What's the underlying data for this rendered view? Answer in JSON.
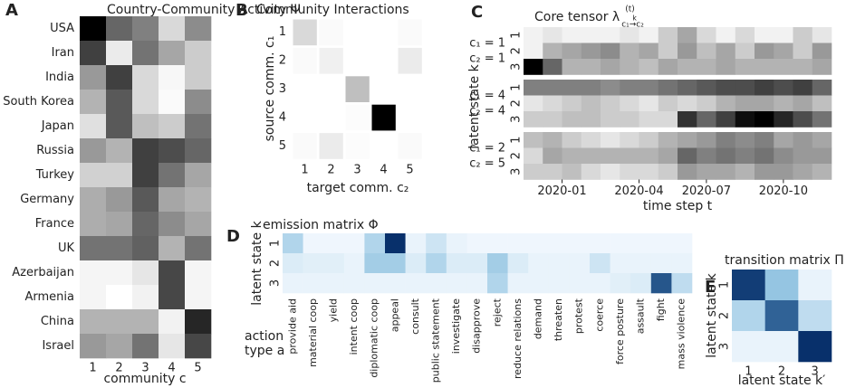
{
  "chart_data": [
    {
      "type": "heatmap",
      "panel": "A",
      "title": "Country-Community Activity Ψ",
      "xlabel": "community c",
      "colormap": "gray",
      "vlim": [
        0,
        1
      ],
      "rows": [
        "USA",
        "Iran",
        "India",
        "South Korea",
        "Japan",
        "Russia",
        "Turkey",
        "Germany",
        "France",
        "UK",
        "Azerbaijan",
        "Armenia",
        "China",
        "Israel"
      ],
      "columns": [
        1,
        2,
        3,
        4,
        5
      ],
      "values": [
        [
          1.0,
          0.6,
          0.5,
          0.15,
          0.45
        ],
        [
          0.75,
          0.08,
          0.55,
          0.35,
          0.2
        ],
        [
          0.4,
          0.75,
          0.15,
          0.03,
          0.2
        ],
        [
          0.3,
          0.65,
          0.15,
          0.02,
          0.45
        ],
        [
          0.12,
          0.65,
          0.25,
          0.2,
          0.55
        ],
        [
          0.4,
          0.3,
          0.75,
          0.7,
          0.6
        ],
        [
          0.18,
          0.18,
          0.75,
          0.55,
          0.35
        ],
        [
          0.32,
          0.4,
          0.65,
          0.35,
          0.3
        ],
        [
          0.32,
          0.35,
          0.6,
          0.45,
          0.35
        ],
        [
          0.55,
          0.55,
          0.62,
          0.3,
          0.55
        ],
        [
          0.04,
          0.04,
          0.1,
          0.72,
          0.04
        ],
        [
          0.04,
          0.0,
          0.05,
          0.72,
          0.04
        ],
        [
          0.3,
          0.3,
          0.3,
          0.05,
          0.85
        ],
        [
          0.4,
          0.35,
          0.55,
          0.1,
          0.72
        ]
      ]
    },
    {
      "type": "heatmap",
      "panel": "B",
      "title": "Community Interactions",
      "xlabel": "target comm. c₂",
      "ylabel": "source comm. c₁",
      "colormap": "gray",
      "vlim": [
        0,
        1
      ],
      "rows": [
        1,
        2,
        3,
        4,
        5
      ],
      "columns": [
        1,
        2,
        3,
        4,
        5
      ],
      "values": [
        [
          0.15,
          0.02,
          0,
          0,
          0.02
        ],
        [
          0.02,
          0.06,
          0,
          0,
          0.08
        ],
        [
          0,
          0,
          0.25,
          0,
          0
        ],
        [
          0,
          0,
          0.01,
          1.0,
          0
        ],
        [
          0.02,
          0.08,
          0.01,
          0,
          0.02
        ]
      ]
    },
    {
      "type": "heatmap",
      "panel": "C",
      "title": "Core tensor λ",
      "title_superscript": "(t)",
      "title_subscript": "c₁→c₂",
      "title_arrow_label": "k",
      "xlabel": "time step t",
      "ylabel": "latent state k",
      "colormap": "gray",
      "vlim": [
        0,
        1
      ],
      "rows": [
        1,
        2,
        3
      ],
      "row_colors": [
        "#5a5aa8",
        "#9a9a9a",
        "#8b1a3a"
      ],
      "xlim": [
        -0.5,
        15.5
      ],
      "xticks": [
        {
          "value": 1.5,
          "label": "2020-01"
        },
        {
          "value": 5.5,
          "label": "2020-04"
        },
        {
          "value": 9.0,
          "label": "2020-07"
        },
        {
          "value": 13.0,
          "label": "2020-10"
        }
      ],
      "blocks": [
        {
          "labels": [
            "c₁ = 1",
            "c₂ = 1"
          ],
          "values": [
            [
              0.05,
              0.1,
              0.05,
              0.05,
              0.05,
              0.1,
              0.05,
              0.2,
              0.35,
              0.15,
              0.05,
              0.15,
              0.05,
              0.05,
              0.2,
              0.1
            ],
            [
              0.05,
              0.3,
              0.35,
              0.4,
              0.45,
              0.3,
              0.35,
              0.2,
              0.4,
              0.25,
              0.35,
              0.2,
              0.4,
              0.35,
              0.2,
              0.4
            ],
            [
              1.0,
              0.6,
              0.3,
              0.3,
              0.35,
              0.3,
              0.25,
              0.35,
              0.3,
              0.3,
              0.35,
              0.3,
              0.3,
              0.3,
              0.3,
              0.35
            ]
          ]
        },
        {
          "labels": [
            "c₁ = 4",
            "c₂ = 4"
          ],
          "values": [
            [
              0.5,
              0.5,
              0.5,
              0.5,
              0.45,
              0.5,
              0.5,
              0.55,
              0.6,
              0.65,
              0.7,
              0.7,
              0.75,
              0.7,
              0.75,
              0.6
            ],
            [
              0.1,
              0.15,
              0.2,
              0.25,
              0.2,
              0.15,
              0.1,
              0.2,
              0.15,
              0.2,
              0.3,
              0.35,
              0.35,
              0.3,
              0.35,
              0.25
            ],
            [
              0.2,
              0.2,
              0.25,
              0.25,
              0.2,
              0.2,
              0.15,
              0.15,
              0.8,
              0.6,
              0.75,
              0.95,
              1.0,
              0.85,
              0.7,
              0.55
            ]
          ]
        },
        {
          "labels": [
            "c₁ = 2",
            "c₂ = 5"
          ],
          "values": [
            [
              0.25,
              0.3,
              0.2,
              0.15,
              0.1,
              0.15,
              0.2,
              0.3,
              0.35,
              0.4,
              0.5,
              0.45,
              0.5,
              0.35,
              0.4,
              0.35
            ],
            [
              0.15,
              0.35,
              0.3,
              0.3,
              0.3,
              0.3,
              0.3,
              0.35,
              0.6,
              0.5,
              0.55,
              0.5,
              0.55,
              0.45,
              0.4,
              0.4
            ],
            [
              0.2,
              0.2,
              0.25,
              0.15,
              0.1,
              0.15,
              0.15,
              0.2,
              0.4,
              0.35,
              0.35,
              0.3,
              0.4,
              0.4,
              0.35,
              0.3
            ]
          ]
        }
      ]
    },
    {
      "type": "heatmap",
      "panel": "D",
      "title": "emission matrix Φ",
      "xlabel": [
        "action",
        "type a"
      ],
      "ylabel": "latent state k",
      "colormap": "Blues",
      "vlim": [
        0,
        1
      ],
      "rows": [
        1,
        2,
        3
      ],
      "row_colors": [
        "#5a5aa8",
        "#9a9a9a",
        "#8b1a3a"
      ],
      "columns": [
        "provide aid",
        "material coop",
        "yield",
        "intent coop",
        "diplomatic coop",
        "appeal",
        "consult",
        "public statement",
        "investigate",
        "disapprove",
        "reject",
        "reduce relations",
        "demand",
        "threaten",
        "protest",
        "coerce",
        "force posture",
        "assault",
        "fight",
        "mass violence"
      ],
      "column_colors": [
        "#4a4aa8",
        "#6a6ab8",
        "#8080c0",
        "#9aa0d0",
        "#b0b8dc",
        "#a8a8a8",
        "#a8a8a8",
        "#a8a8a8",
        "#a8a8a8",
        "#a8a8a8",
        "#a8a8a8",
        "#b0a098",
        "#b09080",
        "#b08070",
        "#b07070",
        "#a86060",
        "#a05058",
        "#984050",
        "#902848",
        "#801838"
      ],
      "values": [
        [
          0.25,
          0.03,
          0.03,
          0.03,
          0.25,
          1.0,
          0.05,
          0.15,
          0.05,
          0.03,
          0.03,
          0.03,
          0.03,
          0.03,
          0.03,
          0.03,
          0.03,
          0.03,
          0.03,
          0.03
        ],
        [
          0.1,
          0.08,
          0.08,
          0.05,
          0.3,
          0.3,
          0.1,
          0.25,
          0.1,
          0.1,
          0.3,
          0.1,
          0.05,
          0.05,
          0.05,
          0.15,
          0.05,
          0.05,
          0.05,
          0.05
        ],
        [
          0.05,
          0.05,
          0.05,
          0.05,
          0.05,
          0.05,
          0.05,
          0.05,
          0.05,
          0.05,
          0.25,
          0.05,
          0.05,
          0.05,
          0.05,
          0.05,
          0.08,
          0.1,
          0.85,
          0.2
        ]
      ]
    },
    {
      "type": "heatmap",
      "panel": "E",
      "title": "transition matrix Π",
      "xlabel": "latent state k′",
      "ylabel": "latent state k",
      "colormap": "Blues",
      "vlim": [
        0,
        1
      ],
      "rows": [
        1,
        2,
        3
      ],
      "row_colors": [
        "#5a5aa8",
        "#9a9a9a",
        "#8b1a3a"
      ],
      "columns": [
        1,
        2,
        3
      ],
      "column_colors": [
        "#5a5aa8",
        "#9a9a9a",
        "#8b1a3a"
      ],
      "values": [
        [
          0.95,
          0.35,
          0.05
        ],
        [
          0.25,
          0.8,
          0.2
        ],
        [
          0.05,
          0.05,
          1.0
        ]
      ]
    }
  ]
}
